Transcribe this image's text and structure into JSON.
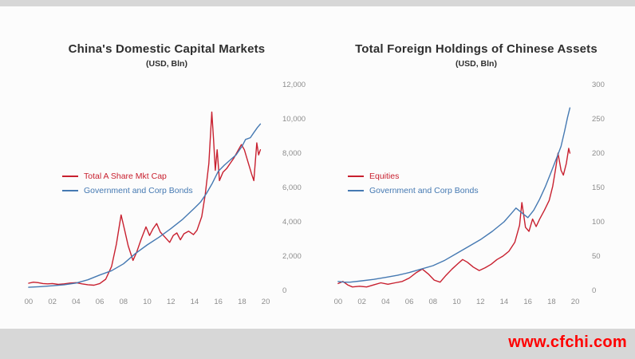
{
  "watermark": "www.cfchi.com",
  "background": {
    "band_color": "#d7d7d7",
    "slide_color": "#fcfcfc"
  },
  "colors": {
    "red_series": "#c8202f",
    "blue_series": "#4579b2",
    "watermark": "#ff0000",
    "title": "#2f2f2f",
    "axis_text": "#8d8d8d"
  },
  "chart_data": [
    {
      "type": "line",
      "title": "China's Domestic Capital Markets",
      "subtitle": "(USD, Bln)",
      "xlabel": "",
      "ylabel": "",
      "xlim": [
        1999.6,
        2020.6
      ],
      "ylim": [
        0,
        12000
      ],
      "xticks": [
        2000,
        2002,
        2004,
        2006,
        2008,
        2010,
        2012,
        2014,
        2016,
        2018,
        2020
      ],
      "xtick_labels": [
        "00",
        "02",
        "04",
        "06",
        "08",
        "10",
        "12",
        "14",
        "16",
        "18",
        "20"
      ],
      "yticks": [
        0,
        2000,
        4000,
        6000,
        8000,
        10000,
        12000
      ],
      "ytick_labels": [
        "0",
        "2,000",
        "4,000",
        "6,000",
        "8,000",
        "10,000",
        "12,000"
      ],
      "grid": false,
      "legend_position": "inside-left",
      "series": [
        {
          "name": "Total A Share Mkt Cap",
          "color": "#c8202f",
          "x": [
            2000.0,
            2000.4,
            2000.8,
            2001.2,
            2001.6,
            2002.0,
            2002.5,
            2003.0,
            2003.5,
            2004.0,
            2004.5,
            2005.0,
            2005.5,
            2006.0,
            2006.5,
            2007.0,
            2007.4,
            2007.8,
            2008.1,
            2008.4,
            2008.8,
            2009.1,
            2009.5,
            2009.9,
            2010.2,
            2010.5,
            2010.8,
            2011.1,
            2011.5,
            2011.9,
            2012.2,
            2012.5,
            2012.8,
            2013.1,
            2013.5,
            2013.9,
            2014.2,
            2014.6,
            2014.9,
            2015.2,
            2015.45,
            2015.6,
            2015.75,
            2015.9,
            2016.1,
            2016.4,
            2016.7,
            2017.0,
            2017.3,
            2017.7,
            2017.95,
            2018.2,
            2018.5,
            2018.8,
            2019.0,
            2019.25,
            2019.4,
            2019.55
          ],
          "y": [
            420,
            480,
            450,
            400,
            380,
            400,
            350,
            380,
            430,
            450,
            380,
            330,
            300,
            400,
            650,
            1400,
            2700,
            4400,
            3500,
            2600,
            1750,
            2200,
            3000,
            3700,
            3200,
            3600,
            3900,
            3400,
            3100,
            2800,
            3200,
            3350,
            2950,
            3300,
            3450,
            3250,
            3500,
            4300,
            5600,
            7400,
            10400,
            8800,
            7000,
            8200,
            6400,
            6900,
            7100,
            7400,
            7700,
            8200,
            8500,
            8200,
            7500,
            6800,
            6400,
            8600,
            7900,
            8200
          ]
        },
        {
          "name": "Government and Corp Bonds",
          "color": "#4579b2",
          "x": [
            2000,
            2001,
            2002,
            2003,
            2004,
            2005,
            2006,
            2007,
            2008,
            2009,
            2010,
            2011,
            2012,
            2013,
            2014,
            2014.5,
            2015,
            2015.5,
            2016,
            2016.5,
            2017,
            2017.5,
            2018,
            2018.3,
            2018.7,
            2019,
            2019.3,
            2019.55
          ],
          "y": [
            180,
            220,
            270,
            330,
            430,
            620,
            900,
            1150,
            1550,
            2150,
            2650,
            3100,
            3600,
            4150,
            4800,
            5150,
            5650,
            6250,
            6950,
            7300,
            7600,
            7900,
            8400,
            8800,
            8900,
            9200,
            9500,
            9700
          ]
        }
      ]
    },
    {
      "type": "line",
      "title": "Total Foreign Holdings of Chinese Assets",
      "subtitle": "(USD, Bln)",
      "xlabel": "",
      "ylabel": "",
      "xlim": [
        1999.6,
        2020.6
      ],
      "ylim": [
        0,
        300
      ],
      "xticks": [
        2000,
        2002,
        2004,
        2006,
        2008,
        2010,
        2012,
        2014,
        2016,
        2018,
        2020
      ],
      "xtick_labels": [
        "00",
        "02",
        "04",
        "06",
        "08",
        "10",
        "12",
        "14",
        "16",
        "18",
        "20"
      ],
      "yticks": [
        0,
        50,
        100,
        150,
        200,
        250,
        300
      ],
      "ytick_labels": [
        "0",
        "50",
        "100",
        "150",
        "200",
        "250",
        "300"
      ],
      "grid": false,
      "legend_position": "inside-left",
      "series": [
        {
          "name": "Equities",
          "color": "#c8202f",
          "x": [
            2000.0,
            2000.4,
            2000.8,
            2001.2,
            2001.8,
            2002.4,
            2003.0,
            2003.6,
            2004.2,
            2004.8,
            2005.4,
            2006.0,
            2006.6,
            2007.1,
            2007.6,
            2008.1,
            2008.6,
            2009.1,
            2009.6,
            2010.1,
            2010.5,
            2010.9,
            2011.4,
            2011.9,
            2012.4,
            2012.9,
            2013.4,
            2013.9,
            2014.4,
            2014.9,
            2015.3,
            2015.5,
            2015.8,
            2016.1,
            2016.4,
            2016.7,
            2017.0,
            2017.4,
            2017.8,
            2018.1,
            2018.35,
            2018.55,
            2018.8,
            2019.0,
            2019.25,
            2019.45,
            2019.55
          ],
          "y": [
            10,
            13,
            8,
            5,
            6,
            5,
            8,
            11,
            9,
            11,
            13,
            18,
            26,
            31,
            24,
            15,
            12,
            22,
            31,
            39,
            45,
            41,
            34,
            29,
            33,
            38,
            45,
            50,
            57,
            70,
            95,
            128,
            92,
            86,
            104,
            93,
            104,
            117,
            131,
            152,
            178,
            200,
            175,
            168,
            185,
            207,
            200
          ]
        },
        {
          "name": "Government and Corp Bonds",
          "color": "#4579b2",
          "x": [
            2000,
            2000.5,
            2001,
            2002,
            2003,
            2004,
            2005,
            2006,
            2007,
            2008,
            2009,
            2010,
            2011,
            2012,
            2013,
            2014,
            2014.5,
            2015,
            2015.5,
            2016,
            2016.5,
            2017,
            2017.5,
            2018,
            2018.5,
            2018.8,
            2019.1,
            2019.35,
            2019.55
          ],
          "y": [
            13,
            12,
            12,
            14,
            16,
            19,
            22,
            26,
            31,
            36,
            44,
            54,
            64,
            74,
            86,
            100,
            110,
            120,
            113,
            106,
            117,
            133,
            152,
            174,
            196,
            210,
            232,
            252,
            266
          ]
        }
      ]
    }
  ]
}
